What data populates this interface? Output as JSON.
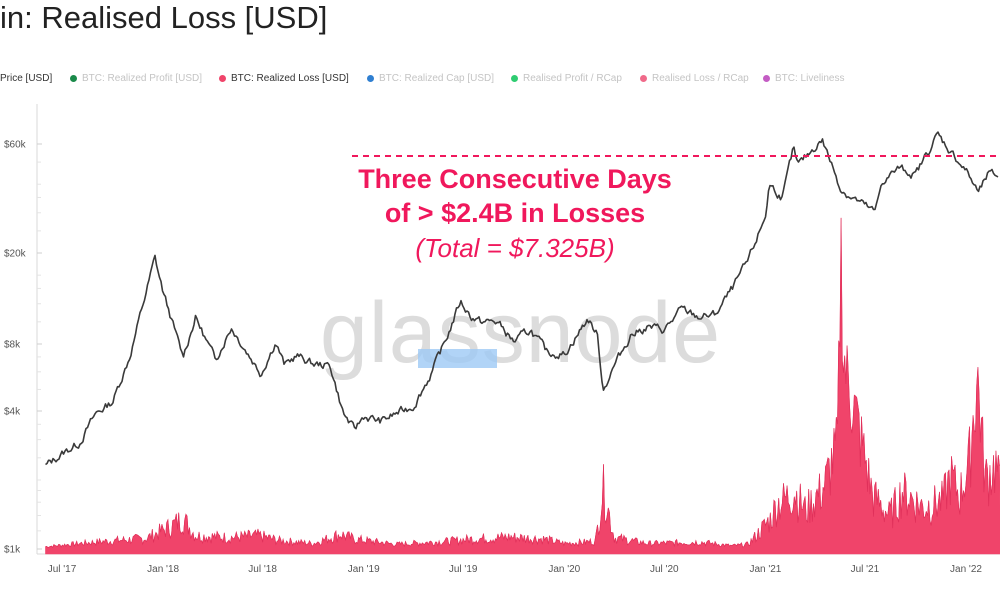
{
  "title": "in: Realised Loss [USD]",
  "legend": [
    {
      "label": "Price [USD]",
      "color": "#555555",
      "active": true,
      "dot": false
    },
    {
      "label": "BTC: Realized Profit [USD]",
      "color": "#1a8a4a",
      "active": false,
      "dot": true
    },
    {
      "label": "BTC: Realized Loss [USD]",
      "color": "#f0446a",
      "active": true,
      "dot": true
    },
    {
      "label": "BTC: Realized Cap [USD]",
      "color": "#2f7fd1",
      "active": false,
      "dot": true
    },
    {
      "label": "Realised Profit / RCap",
      "color": "#2ecc71",
      "active": false,
      "dot": true
    },
    {
      "label": "Realised Loss / RCap",
      "color": "#f06a8a",
      "active": false,
      "dot": true
    },
    {
      "label": "BTC: Liveliness",
      "color": "#c45cc4",
      "active": false,
      "dot": true
    }
  ],
  "watermark": "glassnode",
  "annotation": {
    "line1": "Three Consecutive Days",
    "line2": "of > $2.4B in Losses",
    "line3": "(Total = $7.325B)"
  },
  "colors": {
    "price": "#3a3a3a",
    "loss": "#f0446a",
    "accent": "#f0185c",
    "highlight": "#9ec9f5"
  },
  "chart_data": {
    "type": "line",
    "yscale": "log",
    "ylim": [
      1000,
      75000
    ],
    "y_ticks": [
      {
        "label": "$1k",
        "value": 1000
      },
      {
        "label": "$4k",
        "value": 4000
      },
      {
        "label": "$8k",
        "value": 8000
      },
      {
        "label": "$20k",
        "value": 20000
      },
      {
        "label": "$60k",
        "value": 60000
      }
    ],
    "x_ticks": [
      "Jul '17",
      "Jan '18",
      "Jul '18",
      "Jan '19",
      "Jul '19",
      "Jan '20",
      "Jul '20",
      "Jan '21",
      "Jul '21",
      "Jan '22"
    ],
    "series": [
      {
        "name": "Price [USD]",
        "x": [
          "2017-06-01",
          "2017-07-01",
          "2017-08-01",
          "2017-09-01",
          "2017-10-01",
          "2017-11-01",
          "2017-12-17",
          "2018-01-01",
          "2018-02-06",
          "2018-03-01",
          "2018-04-06",
          "2018-05-05",
          "2018-06-28",
          "2018-07-25",
          "2018-08-10",
          "2018-09-01",
          "2018-10-01",
          "2018-11-01",
          "2018-11-25",
          "2018-12-15",
          "2019-01-01",
          "2019-02-01",
          "2019-03-01",
          "2019-04-01",
          "2019-05-01",
          "2019-06-01",
          "2019-06-26",
          "2019-07-15",
          "2019-08-01",
          "2019-09-01",
          "2019-10-01",
          "2019-11-01",
          "2019-12-01",
          "2020-01-01",
          "2020-02-13",
          "2020-03-01",
          "2020-03-12",
          "2020-04-01",
          "2020-05-01",
          "2020-06-01",
          "2020-07-01",
          "2020-08-01",
          "2020-09-01",
          "2020-10-01",
          "2020-11-01",
          "2020-12-01",
          "2021-01-01",
          "2021-01-08",
          "2021-02-01",
          "2021-02-21",
          "2021-03-01",
          "2021-04-14",
          "2021-05-19",
          "2021-06-01",
          "2021-07-20",
          "2021-08-01",
          "2021-09-01",
          "2021-10-01",
          "2021-11-10",
          "2021-12-01",
          "2022-01-01",
          "2022-01-24",
          "2022-02-10",
          "2022-03-01"
        ],
        "y": [
          2300,
          2600,
          2900,
          3900,
          4400,
          7000,
          19000,
          13500,
          7000,
          10500,
          6800,
          9500,
          5900,
          8200,
          6400,
          7100,
          6500,
          6400,
          3900,
          3300,
          3800,
          3600,
          3900,
          4200,
          5700,
          8500,
          12300,
          10600,
          10000,
          10000,
          8200,
          9200,
          7300,
          7200,
          10300,
          8800,
          5000,
          6400,
          8800,
          9500,
          9200,
          11300,
          10500,
          10700,
          13800,
          18500,
          29000,
          40000,
          35000,
          57000,
          48000,
          63000,
          38000,
          36000,
          30000,
          41000,
          47000,
          44000,
          66000,
          57000,
          46000,
          36500,
          44000,
          43500
        ]
      },
      {
        "name": "BTC: Realized Loss [USD]",
        "x": [
          "2017-06-01",
          "2017-09-01",
          "2017-12-01",
          "2018-01-16",
          "2018-02-06",
          "2018-03-01",
          "2018-05-01",
          "2018-06-24",
          "2018-08-01",
          "2018-10-01",
          "2018-11-20",
          "2018-12-15",
          "2019-03-01",
          "2019-06-01",
          "2019-07-15",
          "2019-09-24",
          "2019-11-25",
          "2020-01-01",
          "2020-02-27",
          "2020-03-12",
          "2020-04-01",
          "2020-06-01",
          "2020-09-04",
          "2020-11-01",
          "2020-12-01",
          "2021-01-11",
          "2021-01-21",
          "2021-02-23",
          "2021-03-15",
          "2021-04-18",
          "2021-05-12",
          "2021-05-19",
          "2021-05-23",
          "2021-06-22",
          "2021-07-15",
          "2021-08-15",
          "2021-09-07",
          "2021-10-15",
          "2021-11-20",
          "2021-12-04",
          "2021-12-20",
          "2022-01-05",
          "2022-01-22",
          "2022-02-05",
          "2022-02-24",
          "2022-03-05"
        ],
        "y": [
          1030,
          1090,
          1140,
          1320,
          1450,
          1180,
          1150,
          1180,
          1110,
          1070,
          1200,
          1130,
          1060,
          1100,
          1130,
          1160,
          1130,
          1070,
          1100,
          2100,
          1150,
          1070,
          1090,
          1040,
          1060,
          1450,
          1700,
          1980,
          1600,
          2100,
          3400,
          30000,
          8500,
          3800,
          1900,
          1500,
          2000,
          1650,
          1800,
          2400,
          1900,
          2600,
          7000,
          2300,
          2700,
          2000
        ]
      }
    ]
  }
}
